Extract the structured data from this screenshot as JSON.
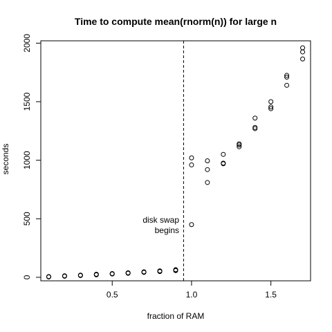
{
  "chart_data": {
    "type": "scatter",
    "title": "Time to compute mean(rnorm(n)) for large n",
    "xlabel": "fraction of RAM",
    "ylabel": "seconds",
    "xlim": [
      0.05,
      1.75
    ],
    "ylim": [
      -30,
      2020
    ],
    "xticks": [
      0.5,
      1.0,
      1.5
    ],
    "xtick_labels": [
      "0.5",
      "1.0",
      "1.5"
    ],
    "yticks": [
      0,
      500,
      1000,
      1500,
      2000
    ],
    "ytick_labels": [
      "0",
      "500",
      "1000",
      "1500",
      "2000"
    ],
    "grid": false,
    "legend": "none",
    "marker": "open-circle",
    "vline": {
      "x": 0.95,
      "style": "dashed"
    },
    "annotation": {
      "lines": [
        "disk swap",
        "begins"
      ],
      "x": 0.94,
      "y": 420
    },
    "points": [
      {
        "x": 0.1,
        "y": 3
      },
      {
        "x": 0.1,
        "y": 5
      },
      {
        "x": 0.1,
        "y": 6
      },
      {
        "x": 0.2,
        "y": 9
      },
      {
        "x": 0.2,
        "y": 11
      },
      {
        "x": 0.2,
        "y": 13
      },
      {
        "x": 0.3,
        "y": 15
      },
      {
        "x": 0.3,
        "y": 17
      },
      {
        "x": 0.3,
        "y": 19
      },
      {
        "x": 0.4,
        "y": 21
      },
      {
        "x": 0.4,
        "y": 24
      },
      {
        "x": 0.4,
        "y": 26
      },
      {
        "x": 0.5,
        "y": 28
      },
      {
        "x": 0.5,
        "y": 30
      },
      {
        "x": 0.5,
        "y": 32
      },
      {
        "x": 0.6,
        "y": 34
      },
      {
        "x": 0.6,
        "y": 37
      },
      {
        "x": 0.6,
        "y": 39
      },
      {
        "x": 0.7,
        "y": 42
      },
      {
        "x": 0.7,
        "y": 45
      },
      {
        "x": 0.7,
        "y": 47
      },
      {
        "x": 0.8,
        "y": 49
      },
      {
        "x": 0.8,
        "y": 52
      },
      {
        "x": 0.8,
        "y": 55
      },
      {
        "x": 0.9,
        "y": 57
      },
      {
        "x": 0.9,
        "y": 61
      },
      {
        "x": 0.9,
        "y": 65
      },
      {
        "x": 1.0,
        "y": 450
      },
      {
        "x": 1.0,
        "y": 960
      },
      {
        "x": 1.0,
        "y": 1020
      },
      {
        "x": 1.1,
        "y": 810
      },
      {
        "x": 1.1,
        "y": 920
      },
      {
        "x": 1.1,
        "y": 995
      },
      {
        "x": 1.2,
        "y": 970
      },
      {
        "x": 1.2,
        "y": 975
      },
      {
        "x": 1.2,
        "y": 1050
      },
      {
        "x": 1.3,
        "y": 1115
      },
      {
        "x": 1.3,
        "y": 1130
      },
      {
        "x": 1.3,
        "y": 1140
      },
      {
        "x": 1.4,
        "y": 1270
      },
      {
        "x": 1.4,
        "y": 1280
      },
      {
        "x": 1.4,
        "y": 1360
      },
      {
        "x": 1.5,
        "y": 1440
      },
      {
        "x": 1.5,
        "y": 1455
      },
      {
        "x": 1.5,
        "y": 1500
      },
      {
        "x": 1.6,
        "y": 1640
      },
      {
        "x": 1.6,
        "y": 1710
      },
      {
        "x": 1.6,
        "y": 1725
      },
      {
        "x": 1.7,
        "y": 1865
      },
      {
        "x": 1.7,
        "y": 1925
      },
      {
        "x": 1.7,
        "y": 1960
      }
    ]
  }
}
